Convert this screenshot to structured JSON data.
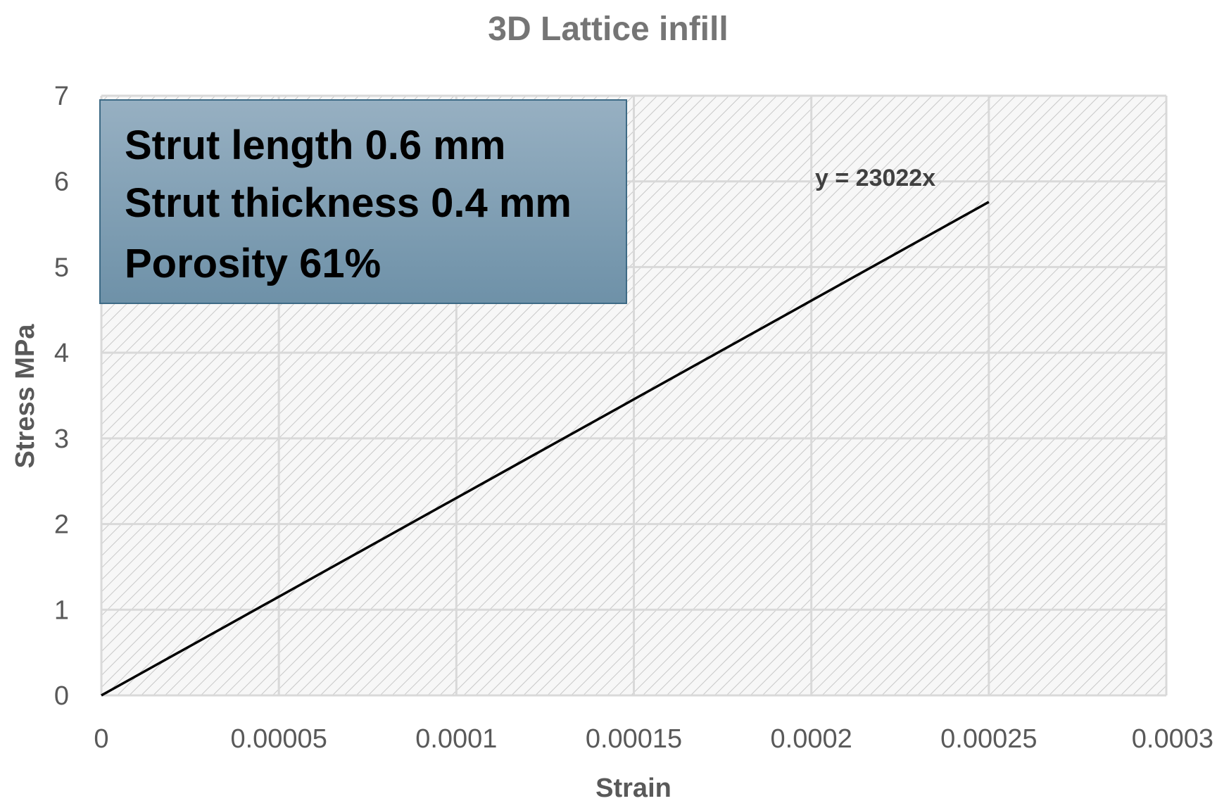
{
  "chart_data": {
    "type": "line",
    "title": "3D Lattice infill",
    "xlabel": "Strain",
    "ylabel": "Stress MPa",
    "xlim": [
      0,
      0.0003
    ],
    "ylim": [
      0,
      7
    ],
    "x_ticks": [
      "0",
      "0.00005",
      "0.0001",
      "0.00015",
      "0.0002",
      "0.00025",
      "0.0003"
    ],
    "y_ticks": [
      "0",
      "1",
      "2",
      "3",
      "4",
      "5",
      "6",
      "7"
    ],
    "grid": true,
    "series": [
      {
        "x": [
          0,
          0.00025
        ],
        "y": [
          0,
          5.76
        ]
      }
    ],
    "trendline_label": "y = 23022x",
    "annotation_box": {
      "lines": [
        "Strut length 0.6 mm",
        "Strut thickness 0.4 mm",
        "Porosity 61%"
      ],
      "placement": "top-left"
    }
  },
  "colors": {
    "line": "#000000",
    "grid": "#d9d9d9",
    "hatch": "#c8c8c8",
    "plot_background": "#f7f7f7",
    "box_top": "#97b0c2",
    "box_bottom": "#6e91a8",
    "box_border": "#3d6a85"
  }
}
